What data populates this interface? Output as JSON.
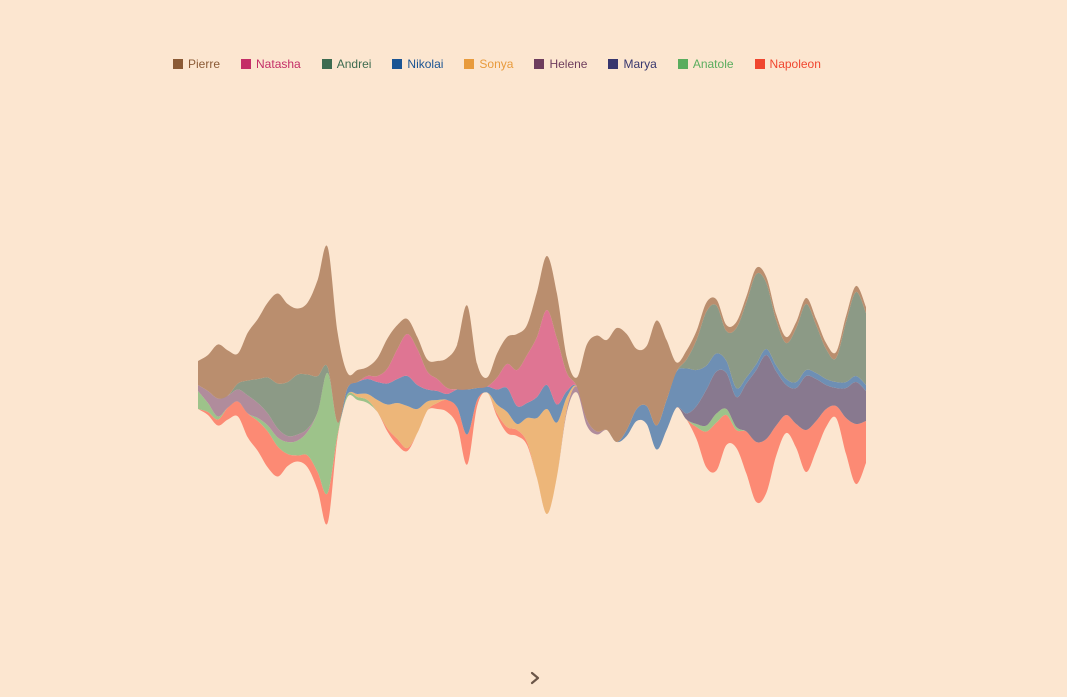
{
  "chart_data": {
    "type": "area",
    "subtype": "streamgraph",
    "title": "",
    "xlabel": "",
    "ylabel": "",
    "axes_visible": false,
    "grid": false,
    "legend_position": "top",
    "x": [
      0,
      1,
      2,
      3,
      4,
      5,
      6,
      7,
      8,
      9,
      10,
      11,
      12,
      13,
      14,
      15,
      16,
      17,
      18,
      19,
      20,
      21,
      22,
      23,
      24,
      25,
      26,
      27,
      28,
      29,
      30,
      31,
      32,
      33,
      34,
      35,
      36,
      37,
      38,
      39,
      40,
      41,
      42,
      43,
      44,
      45,
      46,
      47,
      48,
      49,
      50,
      51,
      52,
      53,
      54,
      55,
      56,
      57,
      58,
      59,
      60,
      61,
      62,
      63,
      64,
      65,
      66,
      67
    ],
    "series": [
      {
        "name": "Pierre",
        "color": "#ba8e6e",
        "legend_color": "#8b5a35",
        "values": [
          8,
          12,
          18,
          15,
          10,
          16,
          20,
          25,
          30,
          26,
          22,
          24,
          32,
          40,
          30,
          5,
          4,
          3,
          6,
          10,
          8,
          5,
          4,
          4,
          6,
          10,
          15,
          28,
          8,
          3,
          8,
          9,
          12,
          10,
          15,
          18,
          15,
          5,
          3,
          25,
          32,
          30,
          38,
          32,
          20,
          20,
          35,
          20,
          3,
          3,
          3,
          3,
          2,
          2,
          2,
          2,
          2,
          2,
          2,
          2,
          2,
          2,
          2,
          2,
          2,
          2,
          2,
          2
        ]
      },
      {
        "name": "Natasha",
        "color": "#df7593",
        "legend_color": "#c42e67",
        "values": [
          0,
          0,
          0,
          0,
          0,
          0,
          0,
          0,
          0,
          0,
          0,
          0,
          0,
          0,
          0,
          0,
          0,
          1,
          2,
          5,
          10,
          14,
          12,
          6,
          4,
          2,
          0,
          0,
          0,
          0,
          4,
          8,
          12,
          16,
          20,
          25,
          22,
          6,
          0,
          0,
          0,
          0,
          0,
          0,
          0,
          0,
          0,
          0,
          0,
          0,
          0,
          0,
          0,
          0,
          0,
          0,
          0,
          0,
          0,
          0,
          0,
          0,
          0,
          0,
          0,
          0,
          0,
          0
        ]
      },
      {
        "name": "Andrei",
        "color": "#8c9a86",
        "legend_color": "#3d6b50",
        "values": [
          0,
          0,
          0,
          0,
          2,
          5,
          8,
          12,
          15,
          18,
          20,
          18,
          12,
          2,
          0,
          0,
          0,
          0,
          0,
          0,
          0,
          0,
          0,
          0,
          0,
          0,
          0,
          0,
          0,
          0,
          0,
          0,
          0,
          0,
          0,
          0,
          0,
          0,
          0,
          0,
          0,
          0,
          0,
          0,
          0,
          0,
          0,
          0,
          0,
          3,
          10,
          18,
          16,
          10,
          20,
          25,
          30,
          22,
          15,
          12,
          18,
          22,
          16,
          10,
          8,
          20,
          28,
          24
        ]
      },
      {
        "name": "Nikolai",
        "color": "#6e8fb4",
        "legend_color": "#1a5493",
        "values": [
          0,
          0,
          0,
          0,
          0,
          0,
          0,
          0,
          0,
          0,
          0,
          0,
          0,
          0,
          0,
          2,
          4,
          5,
          6,
          7,
          8,
          10,
          8,
          4,
          3,
          2,
          6,
          15,
          4,
          2,
          5,
          8,
          6,
          5,
          7,
          8,
          6,
          2,
          0,
          0,
          0,
          0,
          0,
          2,
          4,
          6,
          8,
          10,
          12,
          15,
          12,
          8,
          6,
          4,
          3,
          2,
          2,
          2,
          2,
          2,
          2,
          2,
          2,
          2,
          2,
          2,
          2,
          2
        ]
      },
      {
        "name": "Sonya",
        "color": "#edb679",
        "legend_color": "#e89b3d",
        "values": [
          0,
          0,
          0,
          0,
          0,
          0,
          0,
          0,
          0,
          0,
          0,
          0,
          0,
          0,
          0,
          0,
          1,
          2,
          4,
          8,
          12,
          14,
          8,
          3,
          1,
          0,
          0,
          0,
          0,
          0,
          3,
          5,
          2,
          8,
          20,
          35,
          18,
          4,
          0,
          0,
          0,
          0,
          0,
          0,
          0,
          0,
          0,
          0,
          0,
          0,
          0,
          0,
          0,
          0,
          0,
          0,
          0,
          0,
          0,
          0,
          0,
          0,
          0,
          0,
          0,
          0,
          0,
          0
        ]
      },
      {
        "name": "Helene",
        "color": "#b08c9c",
        "legend_color": "#6e3d5d",
        "values": [
          2,
          4,
          6,
          4,
          4,
          6,
          5,
          4,
          3,
          2,
          2,
          1,
          0,
          0,
          0,
          0,
          0,
          0,
          0,
          0,
          0,
          0,
          0,
          0,
          0,
          0,
          0,
          0,
          0,
          0,
          0,
          0,
          0,
          0,
          0,
          0,
          0,
          1,
          2,
          2,
          1,
          0,
          0,
          0,
          0,
          0,
          0,
          0,
          0,
          0,
          0,
          0,
          0,
          0,
          0,
          0,
          0,
          0,
          0,
          0,
          0,
          0,
          0,
          0,
          0,
          0,
          0,
          0
        ]
      },
      {
        "name": "Marya",
        "color": "#88798f",
        "legend_color": "#37366e",
        "values": [
          0,
          0,
          0,
          0,
          0,
          0,
          0,
          0,
          0,
          0,
          0,
          0,
          0,
          0,
          0,
          0,
          0,
          0,
          0,
          0,
          0,
          0,
          0,
          0,
          0,
          0,
          0,
          0,
          0,
          0,
          0,
          0,
          0,
          0,
          0,
          0,
          0,
          0,
          0,
          0,
          0,
          0,
          0,
          0,
          0,
          0,
          0,
          0,
          0,
          2,
          6,
          12,
          14,
          12,
          10,
          16,
          24,
          28,
          18,
          10,
          12,
          18,
          14,
          8,
          6,
          10,
          14,
          10
        ]
      },
      {
        "name": "Anatole",
        "color": "#9dc38a",
        "legend_color": "#5aad5e",
        "values": [
          6,
          3,
          1,
          0,
          0,
          0,
          1,
          2,
          3,
          4,
          5,
          8,
          20,
          40,
          4,
          1,
          1,
          1,
          0,
          0,
          0,
          0,
          0,
          0,
          0,
          0,
          0,
          0,
          0,
          0,
          0,
          0,
          0,
          0,
          0,
          0,
          0,
          0,
          0,
          0,
          0,
          0,
          0,
          0,
          0,
          0,
          0,
          0,
          0,
          0,
          1,
          2,
          3,
          2,
          1,
          0,
          0,
          0,
          0,
          0,
          0,
          0,
          0,
          0,
          0,
          0,
          0,
          0
        ]
      },
      {
        "name": "Napoleon",
        "color": "#fc8a74",
        "legend_color": "#f0462f",
        "values": [
          0,
          1,
          2,
          4,
          5,
          8,
          10,
          12,
          10,
          4,
          2,
          4,
          6,
          10,
          1,
          0,
          0,
          0,
          0,
          1,
          2,
          1,
          0,
          0,
          2,
          4,
          6,
          10,
          2,
          0,
          1,
          2,
          2,
          1,
          0,
          0,
          0,
          0,
          0,
          0,
          0,
          0,
          0,
          0,
          0,
          0,
          0,
          0,
          0,
          0,
          4,
          12,
          16,
          10,
          6,
          14,
          20,
          18,
          10,
          6,
          8,
          14,
          10,
          6,
          4,
          12,
          20,
          14
        ]
      }
    ]
  },
  "nav": {
    "next_icon": "chevron-right-icon",
    "next_color": "#6b5648"
  }
}
